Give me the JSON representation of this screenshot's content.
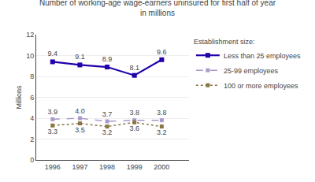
{
  "chart_data": {
    "type": "line",
    "title": "Number of working-age wage-earners uninsured for first half of year\nin millions",
    "ylabel": "Millions",
    "x": [
      1996,
      1997,
      1998,
      1999,
      2000
    ],
    "series": [
      {
        "name": "Less than 25 employees",
        "color": "#2200aa",
        "marker": "square",
        "line_style": "solid",
        "values": [
          9.4,
          9.1,
          8.9,
          8.1,
          9.6
        ]
      },
      {
        "name": "25-99 employees",
        "color": "#aa99cc",
        "marker": "square",
        "line_style": "dash",
        "values": [
          3.9,
          4.0,
          3.7,
          3.8,
          3.8
        ],
        "value_labels": [
          "3.9",
          "4.0",
          "3.7",
          "3.8",
          "3.8"
        ]
      },
      {
        "name": "100 or more employees",
        "color": "#887744",
        "marker": "square",
        "line_style": "dot",
        "values": [
          3.3,
          3.5,
          3.2,
          3.6,
          3.2
        ]
      }
    ],
    "legend_title": "Establishment size:",
    "legend": "upper right",
    "xlim": [
      1995.4,
      2001.0
    ],
    "xticks": [
      1996,
      1997,
      1998,
      1999,
      2000
    ],
    "ylim": [
      0,
      12
    ],
    "yticks": [
      0,
      2,
      4,
      6,
      8,
      10,
      12
    ],
    "grid": true,
    "data_labels": true
  }
}
